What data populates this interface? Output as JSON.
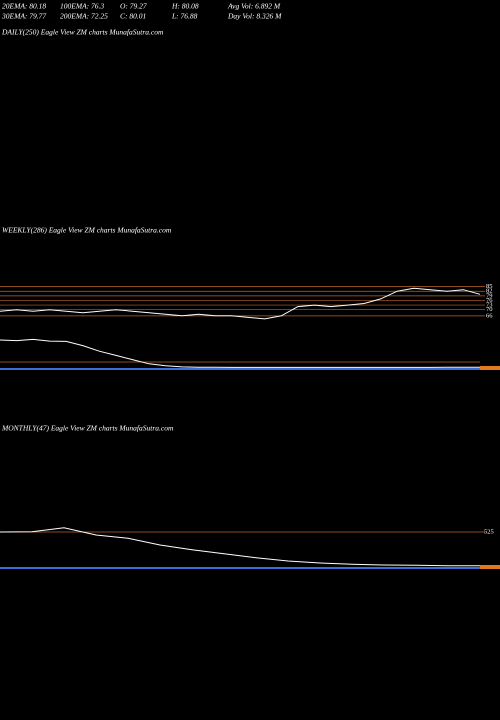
{
  "header": {
    "row1": [
      "20EMA: 80.18",
      "100EMA: 76.3",
      "O: 79.27",
      "H: 80.08",
      "Avg Vol: 6.892  M"
    ],
    "row2": [
      "30EMA: 79.77",
      "200EMA: 72.25",
      "C: 80.01",
      "L: 76.88",
      "Day Vol: 8.326  M"
    ]
  },
  "daily": {
    "label": "DAILY(250) Eagle  View  ZM charts MunafaSutra.com"
  },
  "weekly": {
    "label": "WEEKLY(286) Eagle  View  ZM charts MunafaSutra.com",
    "ylim": [
      62,
      88
    ],
    "levels": [
      85,
      82,
      79,
      76,
      73,
      70,
      66
    ],
    "price": [
      69,
      70,
      69,
      70,
      69,
      68,
      69,
      70,
      69,
      68,
      67,
      66,
      67,
      66,
      66,
      65,
      64,
      66,
      72,
      73,
      72,
      73,
      74,
      77,
      82,
      84,
      83,
      82,
      83,
      80
    ],
    "volume_ylim": [
      0,
      100
    ],
    "volume": [
      100,
      98,
      102,
      96,
      95,
      80,
      60,
      45,
      30,
      15,
      8,
      4,
      3,
      3,
      2,
      2,
      2,
      2,
      2,
      2,
      2,
      2,
      2,
      2,
      2,
      2,
      2,
      3,
      3,
      3
    ]
  },
  "monthly": {
    "label": "MONTHLY(47) Eagle  View  ZM charts MunafaSutra.com",
    "ylim": [
      0,
      600
    ],
    "level": 525,
    "price": [
      525,
      530,
      590,
      480,
      430,
      330,
      260,
      200,
      140,
      90,
      60,
      40,
      30,
      25,
      20,
      20
    ]
  }
}
